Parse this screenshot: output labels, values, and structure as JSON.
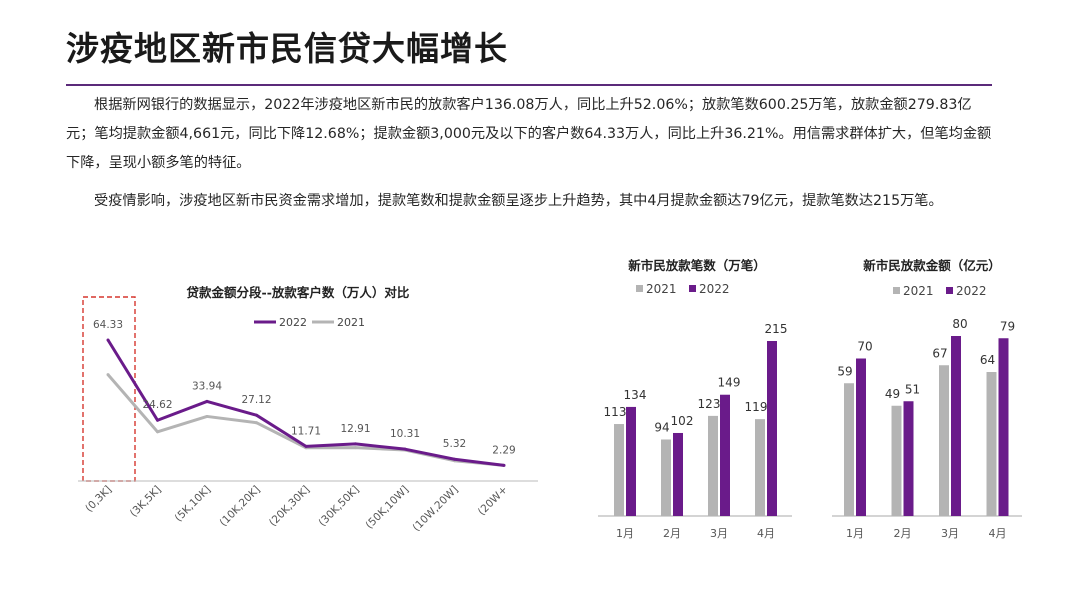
{
  "title": "涉疫地区新市民信贷大幅增长",
  "paragraphs": [
    "根据新网银行的数据显示，2022年涉疫地区新市民的放款客户136.08万人，同比上升52.06%；放款笔数600.25万笔，放款金额279.83亿元；笔均提款金额4,661元，同比下降12.68%；提款金额3,000元及以下的客户数64.33万人，同比上升36.21%。用信需求群体扩大，但笔均金额下降，呈现小额多笔的特征。",
    "受疫情影响，涉疫地区新市民资金需求增加，提款笔数和提款金额呈逐步上升趋势，其中4月提款金额达79亿元，提款笔数达215万笔。"
  ],
  "colors": {
    "purple": "#6a1b8a",
    "gray": "#b4b4b4",
    "highlight": "#d6372f",
    "rule": "#5b2a7a"
  },
  "chart_data": [
    {
      "type": "line",
      "title": "贷款金额分段--放款客户数（万人）对比",
      "categories": [
        "(0,3K]",
        "(3K,5K]",
        "(5K,10K]",
        "(10K,20K]",
        "(20K,30K]",
        "(30K,50K]",
        "(50K,10W]",
        "(10W,20W]",
        "(20W+"
      ],
      "series": [
        {
          "name": "2022",
          "values": [
            64.33,
            24.62,
            33.94,
            27.12,
            11.71,
            12.91,
            10.31,
            5.32,
            2.29
          ]
        },
        {
          "name": "2021",
          "values": [
            47.2,
            18.9,
            26.5,
            23.4,
            11.0,
            11.1,
            9.9,
            4.6,
            2.29
          ]
        }
      ],
      "data_labels": [
        "64.33",
        "24.62",
        "33.94",
        "27.12",
        "11.71",
        "12.91",
        "10.31",
        "5.32",
        "2.29"
      ],
      "legend": [
        "2022",
        "2021"
      ],
      "ylim": [
        0,
        75
      ],
      "highlight_category": "(0,3K]"
    },
    {
      "type": "bar",
      "title": "新市民放款笔数（万笔）",
      "categories": [
        "1月",
        "2月",
        "3月",
        "4月"
      ],
      "series": [
        {
          "name": "2021",
          "values": [
            113,
            94,
            123,
            119
          ]
        },
        {
          "name": "2022",
          "values": [
            134,
            102,
            149,
            215
          ]
        }
      ],
      "legend": [
        "2021",
        "2022"
      ],
      "ylim": [
        0,
        230
      ]
    },
    {
      "type": "bar",
      "title": "新市民放款金额（亿元）",
      "categories": [
        "1月",
        "2月",
        "3月",
        "4月"
      ],
      "series": [
        {
          "name": "2021",
          "values": [
            59,
            49,
            67,
            64
          ]
        },
        {
          "name": "2022",
          "values": [
            70,
            51,
            80,
            79
          ]
        }
      ],
      "legend": [
        "2021",
        "2022"
      ],
      "ylim": [
        0,
        85
      ]
    }
  ]
}
